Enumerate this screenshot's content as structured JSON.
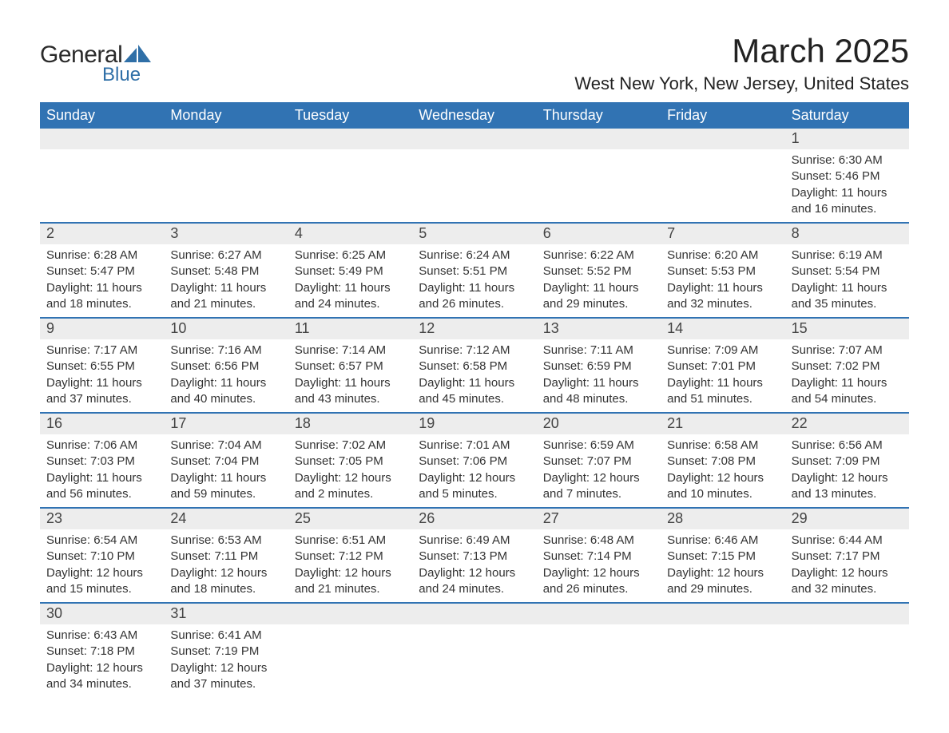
{
  "brand": {
    "text_general": "General",
    "text_blue": "Blue",
    "accent_color": "#2f6fa7"
  },
  "header": {
    "title": "March 2025",
    "location": "West New York, New Jersey, United States"
  },
  "colors": {
    "header_bar": "#3173b3",
    "header_text": "#ffffff",
    "daynum_bg": "#ededed",
    "row_divider": "#3173b3",
    "body_text": "#333333",
    "background": "#ffffff"
  },
  "typography": {
    "title_fontsize": 42,
    "location_fontsize": 22,
    "weekday_fontsize": 18,
    "daynum_fontsize": 18,
    "body_fontsize": 15
  },
  "weekdays": [
    "Sunday",
    "Monday",
    "Tuesday",
    "Wednesday",
    "Thursday",
    "Friday",
    "Saturday"
  ],
  "weeks": [
    [
      {
        "num": "",
        "sunrise": "",
        "sunset": "",
        "daylight": ""
      },
      {
        "num": "",
        "sunrise": "",
        "sunset": "",
        "daylight": ""
      },
      {
        "num": "",
        "sunrise": "",
        "sunset": "",
        "daylight": ""
      },
      {
        "num": "",
        "sunrise": "",
        "sunset": "",
        "daylight": ""
      },
      {
        "num": "",
        "sunrise": "",
        "sunset": "",
        "daylight": ""
      },
      {
        "num": "",
        "sunrise": "",
        "sunset": "",
        "daylight": ""
      },
      {
        "num": "1",
        "sunrise": "Sunrise: 6:30 AM",
        "sunset": "Sunset: 5:46 PM",
        "daylight": "Daylight: 11 hours and 16 minutes."
      }
    ],
    [
      {
        "num": "2",
        "sunrise": "Sunrise: 6:28 AM",
        "sunset": "Sunset: 5:47 PM",
        "daylight": "Daylight: 11 hours and 18 minutes."
      },
      {
        "num": "3",
        "sunrise": "Sunrise: 6:27 AM",
        "sunset": "Sunset: 5:48 PM",
        "daylight": "Daylight: 11 hours and 21 minutes."
      },
      {
        "num": "4",
        "sunrise": "Sunrise: 6:25 AM",
        "sunset": "Sunset: 5:49 PM",
        "daylight": "Daylight: 11 hours and 24 minutes."
      },
      {
        "num": "5",
        "sunrise": "Sunrise: 6:24 AM",
        "sunset": "Sunset: 5:51 PM",
        "daylight": "Daylight: 11 hours and 26 minutes."
      },
      {
        "num": "6",
        "sunrise": "Sunrise: 6:22 AM",
        "sunset": "Sunset: 5:52 PM",
        "daylight": "Daylight: 11 hours and 29 minutes."
      },
      {
        "num": "7",
        "sunrise": "Sunrise: 6:20 AM",
        "sunset": "Sunset: 5:53 PM",
        "daylight": "Daylight: 11 hours and 32 minutes."
      },
      {
        "num": "8",
        "sunrise": "Sunrise: 6:19 AM",
        "sunset": "Sunset: 5:54 PM",
        "daylight": "Daylight: 11 hours and 35 minutes."
      }
    ],
    [
      {
        "num": "9",
        "sunrise": "Sunrise: 7:17 AM",
        "sunset": "Sunset: 6:55 PM",
        "daylight": "Daylight: 11 hours and 37 minutes."
      },
      {
        "num": "10",
        "sunrise": "Sunrise: 7:16 AM",
        "sunset": "Sunset: 6:56 PM",
        "daylight": "Daylight: 11 hours and 40 minutes."
      },
      {
        "num": "11",
        "sunrise": "Sunrise: 7:14 AM",
        "sunset": "Sunset: 6:57 PM",
        "daylight": "Daylight: 11 hours and 43 minutes."
      },
      {
        "num": "12",
        "sunrise": "Sunrise: 7:12 AM",
        "sunset": "Sunset: 6:58 PM",
        "daylight": "Daylight: 11 hours and 45 minutes."
      },
      {
        "num": "13",
        "sunrise": "Sunrise: 7:11 AM",
        "sunset": "Sunset: 6:59 PM",
        "daylight": "Daylight: 11 hours and 48 minutes."
      },
      {
        "num": "14",
        "sunrise": "Sunrise: 7:09 AM",
        "sunset": "Sunset: 7:01 PM",
        "daylight": "Daylight: 11 hours and 51 minutes."
      },
      {
        "num": "15",
        "sunrise": "Sunrise: 7:07 AM",
        "sunset": "Sunset: 7:02 PM",
        "daylight": "Daylight: 11 hours and 54 minutes."
      }
    ],
    [
      {
        "num": "16",
        "sunrise": "Sunrise: 7:06 AM",
        "sunset": "Sunset: 7:03 PM",
        "daylight": "Daylight: 11 hours and 56 minutes."
      },
      {
        "num": "17",
        "sunrise": "Sunrise: 7:04 AM",
        "sunset": "Sunset: 7:04 PM",
        "daylight": "Daylight: 11 hours and 59 minutes."
      },
      {
        "num": "18",
        "sunrise": "Sunrise: 7:02 AM",
        "sunset": "Sunset: 7:05 PM",
        "daylight": "Daylight: 12 hours and 2 minutes."
      },
      {
        "num": "19",
        "sunrise": "Sunrise: 7:01 AM",
        "sunset": "Sunset: 7:06 PM",
        "daylight": "Daylight: 12 hours and 5 minutes."
      },
      {
        "num": "20",
        "sunrise": "Sunrise: 6:59 AM",
        "sunset": "Sunset: 7:07 PM",
        "daylight": "Daylight: 12 hours and 7 minutes."
      },
      {
        "num": "21",
        "sunrise": "Sunrise: 6:58 AM",
        "sunset": "Sunset: 7:08 PM",
        "daylight": "Daylight: 12 hours and 10 minutes."
      },
      {
        "num": "22",
        "sunrise": "Sunrise: 6:56 AM",
        "sunset": "Sunset: 7:09 PM",
        "daylight": "Daylight: 12 hours and 13 minutes."
      }
    ],
    [
      {
        "num": "23",
        "sunrise": "Sunrise: 6:54 AM",
        "sunset": "Sunset: 7:10 PM",
        "daylight": "Daylight: 12 hours and 15 minutes."
      },
      {
        "num": "24",
        "sunrise": "Sunrise: 6:53 AM",
        "sunset": "Sunset: 7:11 PM",
        "daylight": "Daylight: 12 hours and 18 minutes."
      },
      {
        "num": "25",
        "sunrise": "Sunrise: 6:51 AM",
        "sunset": "Sunset: 7:12 PM",
        "daylight": "Daylight: 12 hours and 21 minutes."
      },
      {
        "num": "26",
        "sunrise": "Sunrise: 6:49 AM",
        "sunset": "Sunset: 7:13 PM",
        "daylight": "Daylight: 12 hours and 24 minutes."
      },
      {
        "num": "27",
        "sunrise": "Sunrise: 6:48 AM",
        "sunset": "Sunset: 7:14 PM",
        "daylight": "Daylight: 12 hours and 26 minutes."
      },
      {
        "num": "28",
        "sunrise": "Sunrise: 6:46 AM",
        "sunset": "Sunset: 7:15 PM",
        "daylight": "Daylight: 12 hours and 29 minutes."
      },
      {
        "num": "29",
        "sunrise": "Sunrise: 6:44 AM",
        "sunset": "Sunset: 7:17 PM",
        "daylight": "Daylight: 12 hours and 32 minutes."
      }
    ],
    [
      {
        "num": "30",
        "sunrise": "Sunrise: 6:43 AM",
        "sunset": "Sunset: 7:18 PM",
        "daylight": "Daylight: 12 hours and 34 minutes."
      },
      {
        "num": "31",
        "sunrise": "Sunrise: 6:41 AM",
        "sunset": "Sunset: 7:19 PM",
        "daylight": "Daylight: 12 hours and 37 minutes."
      },
      {
        "num": "",
        "sunrise": "",
        "sunset": "",
        "daylight": ""
      },
      {
        "num": "",
        "sunrise": "",
        "sunset": "",
        "daylight": ""
      },
      {
        "num": "",
        "sunrise": "",
        "sunset": "",
        "daylight": ""
      },
      {
        "num": "",
        "sunrise": "",
        "sunset": "",
        "daylight": ""
      },
      {
        "num": "",
        "sunrise": "",
        "sunset": "",
        "daylight": ""
      }
    ]
  ]
}
